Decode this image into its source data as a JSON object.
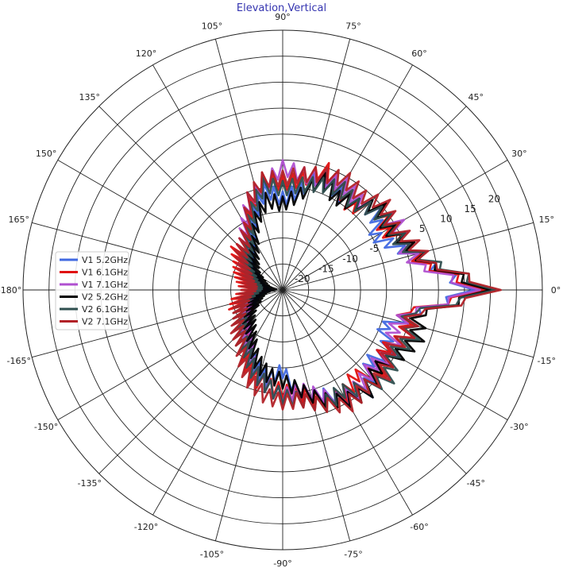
{
  "chart_data": {
    "type": "line",
    "polar": true,
    "title": "Elevation,Vertical",
    "angle_unit": "deg",
    "theta_direction": "counterclockwise",
    "theta_zero": "right",
    "theta_ticks": [
      0,
      15,
      30,
      45,
      60,
      75,
      90,
      105,
      120,
      135,
      150,
      165,
      -180,
      -165,
      -150,
      -135,
      -120,
      -105,
      -90,
      -75,
      -60,
      -45,
      -30,
      -15
    ],
    "theta_tick_labels": [
      "0°",
      "15°",
      "30°",
      "45°",
      "60°",
      "75°",
      "90°",
      "105°",
      "120°",
      "135°",
      "150°",
      "165°",
      "-180°",
      "-165°",
      "-150°",
      "-135°",
      "-120°",
      "-105°",
      "-90°",
      "-75°",
      "-60°",
      "-45°",
      "-30°",
      "-15°"
    ],
    "rlim": [
      -25,
      25
    ],
    "r_ticks": [
      -20,
      -15,
      -10,
      -5,
      0,
      5,
      10,
      15,
      20
    ],
    "r_tick_labels": [
      "-20",
      "-15",
      "-10",
      "-5",
      "0",
      "5",
      "10",
      "15",
      "20"
    ],
    "grid": true,
    "legend_position": "left",
    "angles": [
      -180,
      -170,
      -160,
      -150,
      -140,
      -130,
      -120,
      -110,
      -100,
      -90,
      -80,
      -70,
      -60,
      -50,
      -40,
      -30,
      -20,
      -10,
      0,
      10,
      20,
      30,
      40,
      50,
      60,
      70,
      80,
      90,
      100,
      110,
      120,
      130,
      140,
      150,
      160,
      170
    ],
    "series": [
      {
        "name": "V1 5.2GHz",
        "color": "#4169e1",
        "values": [
          -20,
          -18,
          -17,
          -16,
          -14,
          -12,
          -10,
          -8,
          -6,
          -8,
          -3,
          -2,
          0,
          2,
          -2,
          0,
          -3,
          2,
          12,
          5,
          0,
          -3,
          0,
          -2,
          -2,
          0,
          -4,
          -6,
          -4,
          -8,
          -12,
          -14,
          -15,
          -17,
          -18,
          -19
        ]
      },
      {
        "name": "V1 6.1GHz",
        "color": "#e01010",
        "values": [
          -17,
          -15,
          -14,
          -16,
          -13,
          -12,
          -9,
          -6,
          -5,
          -4,
          -3,
          -1,
          0,
          -2,
          1,
          -1,
          2,
          0,
          14,
          4,
          2,
          -1,
          1,
          -3,
          -1,
          1,
          -2,
          -3,
          -2,
          -6,
          -10,
          -13,
          -12,
          -14,
          -15,
          -16
        ]
      },
      {
        "name": "V1 7.1GHz",
        "color": "#b050d0",
        "values": [
          -19,
          -17,
          -16,
          -15,
          -14,
          -13,
          -11,
          -7,
          -5,
          -3,
          -4,
          -2,
          1,
          0,
          -1,
          1,
          -1,
          1,
          13,
          3,
          1,
          2,
          0,
          -1,
          0,
          -1,
          -1,
          0,
          -3,
          -5,
          -9,
          -12,
          -14,
          -15,
          -17,
          -18
        ]
      },
      {
        "name": "V2 5.2GHz",
        "color": "#000000",
        "values": [
          -21,
          -19,
          -18,
          -17,
          -15,
          -14,
          -12,
          -9,
          -7,
          -6,
          -4,
          -1,
          1,
          2,
          0,
          2,
          4,
          3,
          15,
          5,
          2,
          0,
          1,
          -2,
          -3,
          -1,
          -5,
          -7,
          -6,
          -9,
          -13,
          -15,
          -16,
          -18,
          -19,
          -20
        ]
      },
      {
        "name": "V2 6.1GHz",
        "color": "#2f4f4f",
        "values": [
          -18,
          -17,
          -15,
          -14,
          -13,
          -11,
          -10,
          -7,
          -5,
          -3,
          -2,
          0,
          -1,
          1,
          3,
          1,
          3,
          1,
          16,
          6,
          1,
          1,
          0,
          -2,
          -1,
          -2,
          -3,
          -4,
          -3,
          -7,
          -11,
          -13,
          -14,
          -16,
          -17,
          -18
        ]
      },
      {
        "name": "V2 7.1GHz",
        "color": "#b22228",
        "values": [
          -17,
          -16,
          -15,
          -14,
          -12,
          -11,
          -8,
          -5,
          -3,
          -2,
          -2,
          0,
          2,
          1,
          2,
          0,
          2,
          2,
          17,
          5,
          3,
          1,
          2,
          0,
          1,
          0,
          -1,
          -2,
          -2,
          -5,
          -10,
          -12,
          -13,
          -15,
          -16,
          -17
        ]
      }
    ]
  }
}
